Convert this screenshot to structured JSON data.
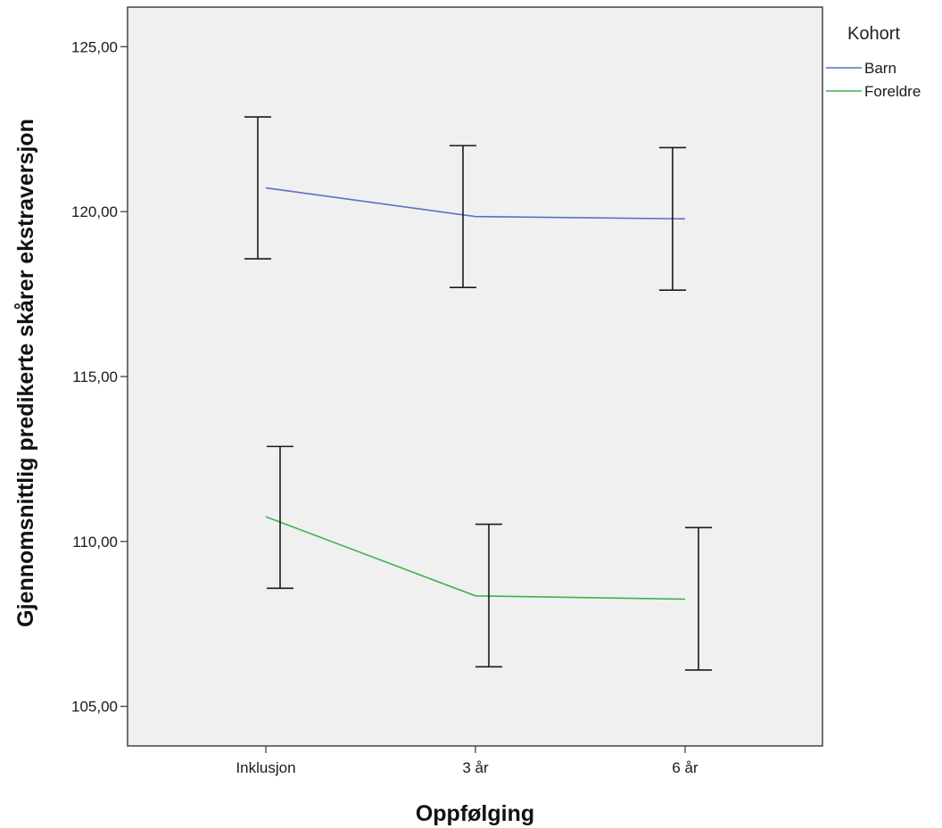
{
  "chart_data": {
    "type": "line",
    "title": "",
    "xlabel": "Oppfølging",
    "ylabel": "Gjennomsnittlig predikerte skårer ekstraversjon",
    "categories": [
      "Inklusjon",
      "3 år",
      "6 år"
    ],
    "ylim": [
      103.8,
      126.2
    ],
    "yticks": [
      105,
      110,
      115,
      120,
      125
    ],
    "ytick_labels": [
      "105,00",
      "110,00",
      "115,00",
      "120,00",
      "125,00"
    ],
    "grid": false,
    "legend": {
      "title": "Kohort",
      "position": "right"
    },
    "series": [
      {
        "name": "Barn",
        "color": "#5a6fc0",
        "values": [
          120.72,
          119.85,
          119.78
        ],
        "error_low": [
          118.57,
          117.7,
          117.62
        ],
        "error_high": [
          122.87,
          122.0,
          121.94
        ]
      },
      {
        "name": "Foreldre",
        "color": "#3fb04f",
        "values": [
          110.75,
          108.35,
          108.25
        ],
        "error_low": [
          108.58,
          106.2,
          106.1
        ],
        "error_high": [
          112.88,
          110.52,
          110.42
        ]
      }
    ],
    "plot_background": "#f0f0f0",
    "error_bar_color": "#1a1a1a"
  }
}
